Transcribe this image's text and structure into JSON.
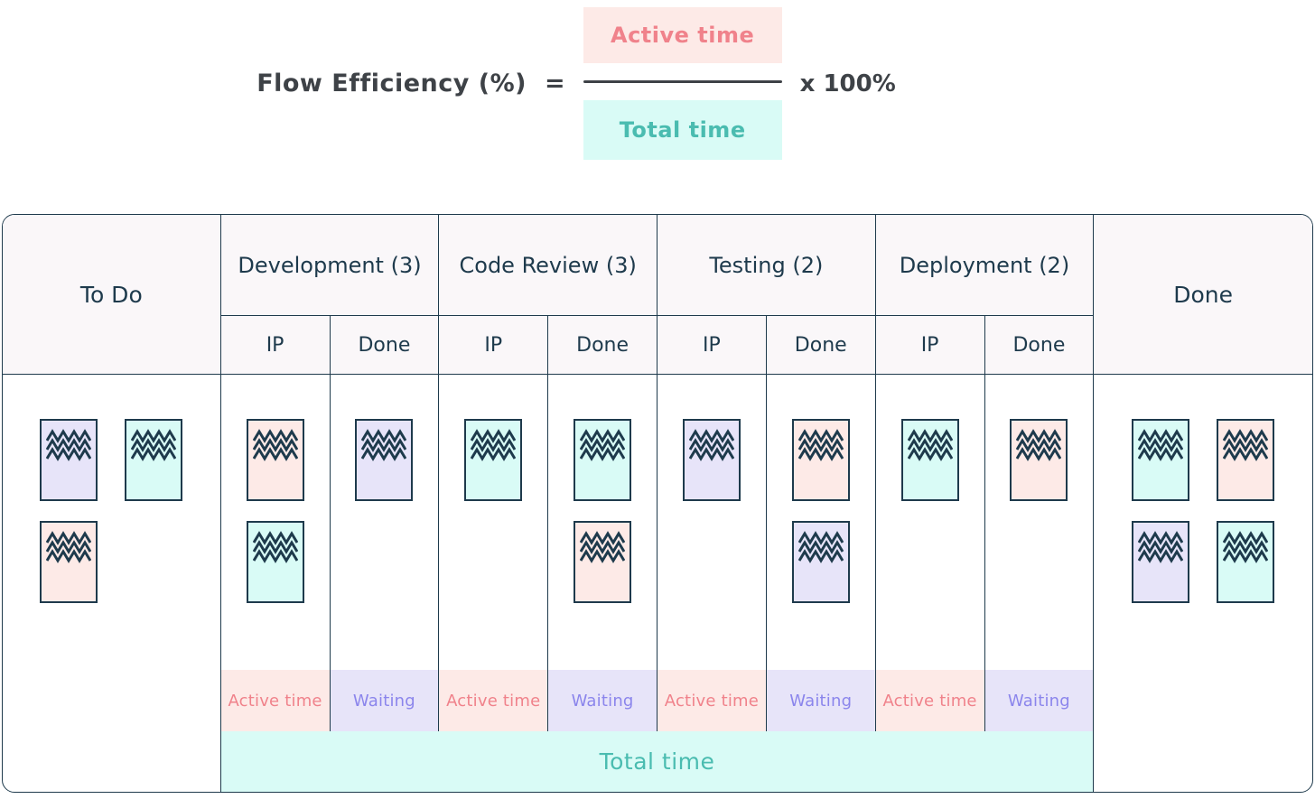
{
  "formula": {
    "lhs": "Flow Efficiency (%)",
    "equals": "=",
    "numerator": "Active time",
    "denominator": "Total time",
    "multiplier": "x 100%"
  },
  "board": {
    "todo": {
      "label": "To Do",
      "cards": [
        "lavender",
        "cyan",
        "pink"
      ]
    },
    "groups": [
      {
        "label": "Development (3)",
        "sub": [
          "IP",
          "Done"
        ],
        "ip_cards": [
          "pink",
          "cyan"
        ],
        "done_cards": [
          "lavender"
        ]
      },
      {
        "label": "Code Review (3)",
        "sub": [
          "IP",
          "Done"
        ],
        "ip_cards": [
          "cyan"
        ],
        "done_cards": [
          "cyan",
          "pink"
        ]
      },
      {
        "label": "Testing (2)",
        "sub": [
          "IP",
          "Done"
        ],
        "ip_cards": [
          "lavender"
        ],
        "done_cards": [
          "pink",
          "lavender"
        ]
      },
      {
        "label": "Deployment (2)",
        "sub": [
          "IP",
          "Done"
        ],
        "ip_cards": [
          "cyan"
        ],
        "done_cards": [
          "pink"
        ]
      }
    ],
    "done": {
      "label": "Done",
      "cards": [
        "cyan",
        "pink",
        "lavender",
        "cyan"
      ]
    }
  },
  "footer": {
    "active_label": "Active time",
    "waiting_label": "Waiting",
    "total_label": "Total time"
  },
  "colors": {
    "pink_bg": "#fdeae7",
    "cyan_bg": "#d9fbf6",
    "lavender_bg": "#e7e4f9",
    "pink_text": "#f0828b",
    "teal_text": "#4abcb0",
    "purple_text": "#8b85ec",
    "navy": "#1e3a4c",
    "dark": "#3e4247",
    "header_bg": "#faf7f9"
  }
}
